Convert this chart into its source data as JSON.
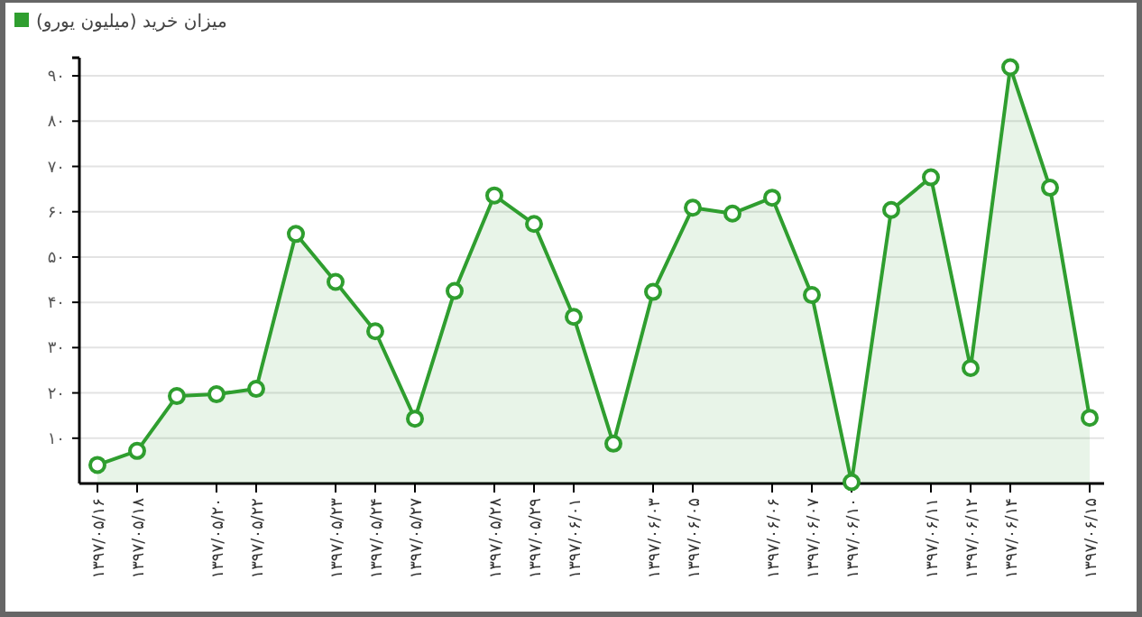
{
  "chart_data": {
    "type": "area",
    "categories": [
      "۱۳۹۷/۰۵/۱۶",
      "۱۳۹۷/۰۵/۱۸",
      null,
      "۱۳۹۷/۰۵/۲۰",
      "۱۳۹۷/۰۵/۲۲",
      null,
      "۱۳۹۷/۰۵/۲۳",
      "۱۳۹۷/۰۵/۲۴",
      "۱۳۹۷/۰۵/۲۷",
      null,
      "۱۳۹۷/۰۵/۲۸",
      "۱۳۹۷/۰۵/۲۹",
      "۱۳۹۷/۰۶/۰۱",
      null,
      "۱۳۹۷/۰۶/۰۳",
      "۱۳۹۷/۰۶/۰۵",
      null,
      "۱۳۹۷/۰۶/۰۶",
      "۱۳۹۷/۰۶/۰۷",
      "۱۳۹۷/۰۶/۱۰",
      null,
      "۱۳۹۷/۰۶/۱۱",
      "۱۳۹۷/۰۶/۱۲",
      "۱۳۹۷/۰۶/۱۴",
      null,
      "۱۳۹۷/۰۶/۱۵"
    ],
    "series": [
      {
        "name": "میزان خرید (میلیون یورو)",
        "color": "#2f9e2f",
        "values": [
          4.1,
          7.2,
          19.3,
          19.7,
          20.9,
          55.1,
          44.5,
          33.6,
          14.3,
          42.5,
          63.6,
          57.3,
          36.8,
          8.8,
          42.3,
          60.9,
          59.6,
          63.1,
          41.6,
          0.3,
          60.4,
          67.6,
          25.5,
          91.9,
          65.3,
          14.5
        ]
      }
    ],
    "ylim": [
      0,
      94
    ],
    "yticks": [
      {
        "value": 10,
        "label": "۱۰"
      },
      {
        "value": 20,
        "label": "۲۰"
      },
      {
        "value": 30,
        "label": "۳۰"
      },
      {
        "value": 40,
        "label": "۴۰"
      },
      {
        "value": 50,
        "label": "۵۰"
      },
      {
        "value": 60,
        "label": "۶۰"
      },
      {
        "value": 70,
        "label": "۷۰"
      },
      {
        "value": 80,
        "label": "۸۰"
      },
      {
        "value": 90,
        "label": "۹۰"
      }
    ],
    "grid": "y",
    "legend": "top left",
    "marker": "circle",
    "line_style": "solid"
  }
}
